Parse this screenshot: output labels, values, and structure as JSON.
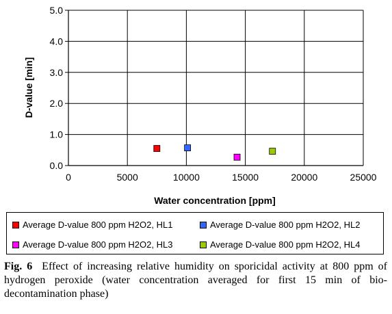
{
  "chart_data": {
    "type": "scatter",
    "xlabel": "Water concentration [ppm]",
    "ylabel": "D-value [min]",
    "xlim": [
      0,
      25000
    ],
    "ylim": [
      0.0,
      5.0
    ],
    "x_ticks": [
      "0",
      "5000",
      "10000",
      "15000",
      "20000",
      "25000"
    ],
    "y_ticks": [
      "0.0",
      "1.0",
      "2.0",
      "3.0",
      "4.0",
      "5.0"
    ],
    "grid": true,
    "legend_position": "bottom",
    "series": [
      {
        "name": "Average D-value 800 ppm H2O2, HL1",
        "color": "#ff0000",
        "x": [
          7500
        ],
        "y": [
          0.55
        ]
      },
      {
        "name": "Average D-value 800 ppm H2O2, HL2",
        "color": "#3366ff",
        "x": [
          10100
        ],
        "y": [
          0.57
        ]
      },
      {
        "name": "Average D-value 800 ppm H2O2, HL3",
        "color": "#ff00ff",
        "x": [
          14300
        ],
        "y": [
          0.27
        ]
      },
      {
        "name": "Average D-value 800 ppm H2O2, HL4",
        "color": "#99cc00",
        "x": [
          17300
        ],
        "y": [
          0.46
        ]
      }
    ]
  },
  "caption": {
    "label": "Fig. 6",
    "text": "Effect of increasing relative humidity on sporicidal activity at 800 ppm of hydrogen peroxide (water concentration averaged for first 15 min of bio-decontamination phase)"
  }
}
